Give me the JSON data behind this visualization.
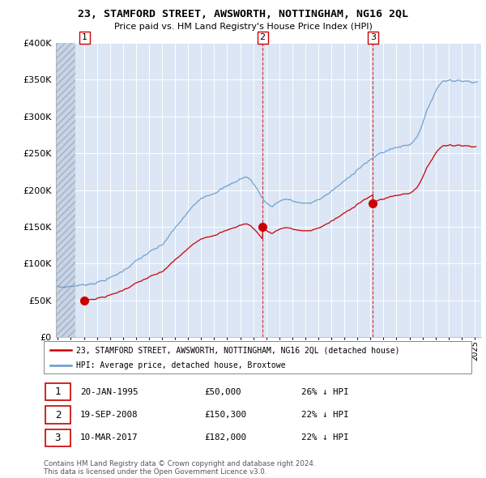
{
  "title": "23, STAMFORD STREET, AWSWORTH, NOTTINGHAM, NG16 2QL",
  "subtitle": "Price paid vs. HM Land Registry's House Price Index (HPI)",
  "bg_color": "#dce6f5",
  "grid_color": "#c8d4e8",
  "sale1_date": 1995.05,
  "sale1_price": 50000,
  "sale2_date": 2008.72,
  "sale2_price": 150300,
  "sale3_date": 2017.19,
  "sale3_price": 182000,
  "legend1": "23, STAMFORD STREET, AWSWORTH, NOTTINGHAM, NG16 2QL (detached house)",
  "legend2": "HPI: Average price, detached house, Broxtowe",
  "table_row1": [
    "1",
    "20-JAN-1995",
    "£50,000",
    "26% ↓ HPI"
  ],
  "table_row2": [
    "2",
    "19-SEP-2008",
    "£150,300",
    "22% ↓ HPI"
  ],
  "table_row3": [
    "3",
    "10-MAR-2017",
    "£182,000",
    "22% ↓ HPI"
  ],
  "footnote1": "Contains HM Land Registry data © Crown copyright and database right 2024.",
  "footnote2": "This data is licensed under the Open Government Licence v3.0.",
  "xmin": 1993.0,
  "xmax": 2025.5,
  "ymin": 0,
  "ymax": 400000,
  "red_color": "#cc0000",
  "blue_color": "#6699cc",
  "hpi_base_points": [
    [
      1993.0,
      67000
    ],
    [
      1994.0,
      69000
    ],
    [
      1995.0,
      71000
    ],
    [
      1996.0,
      74000
    ],
    [
      1997.0,
      80000
    ],
    [
      1998.0,
      90000
    ],
    [
      1999.0,
      103000
    ],
    [
      2000.0,
      115000
    ],
    [
      2001.0,
      125000
    ],
    [
      2002.0,
      148000
    ],
    [
      2003.0,
      170000
    ],
    [
      2004.0,
      190000
    ],
    [
      2005.0,
      196000
    ],
    [
      2006.0,
      205000
    ],
    [
      2007.0,
      215000
    ],
    [
      2007.5,
      218000
    ],
    [
      2008.0,
      210000
    ],
    [
      2008.5,
      195000
    ],
    [
      2009.0,
      182000
    ],
    [
      2009.5,
      178000
    ],
    [
      2010.0,
      185000
    ],
    [
      2010.5,
      188000
    ],
    [
      2011.0,
      185000
    ],
    [
      2011.5,
      183000
    ],
    [
      2012.0,
      181000
    ],
    [
      2012.5,
      183000
    ],
    [
      2013.0,
      187000
    ],
    [
      2013.5,
      192000
    ],
    [
      2014.0,
      198000
    ],
    [
      2014.5,
      205000
    ],
    [
      2015.0,
      212000
    ],
    [
      2015.5,
      220000
    ],
    [
      2016.0,
      228000
    ],
    [
      2016.5,
      235000
    ],
    [
      2017.0,
      240000
    ],
    [
      2017.5,
      248000
    ],
    [
      2018.0,
      252000
    ],
    [
      2018.5,
      255000
    ],
    [
      2019.0,
      258000
    ],
    [
      2019.5,
      260000
    ],
    [
      2020.0,
      262000
    ],
    [
      2020.5,
      270000
    ],
    [
      2021.0,
      290000
    ],
    [
      2021.5,
      315000
    ],
    [
      2022.0,
      335000
    ],
    [
      2022.5,
      348000
    ],
    [
      2023.0,
      350000
    ],
    [
      2023.5,
      348000
    ],
    [
      2024.0,
      350000
    ],
    [
      2024.5,
      348000
    ],
    [
      2025.0,
      346000
    ]
  ]
}
